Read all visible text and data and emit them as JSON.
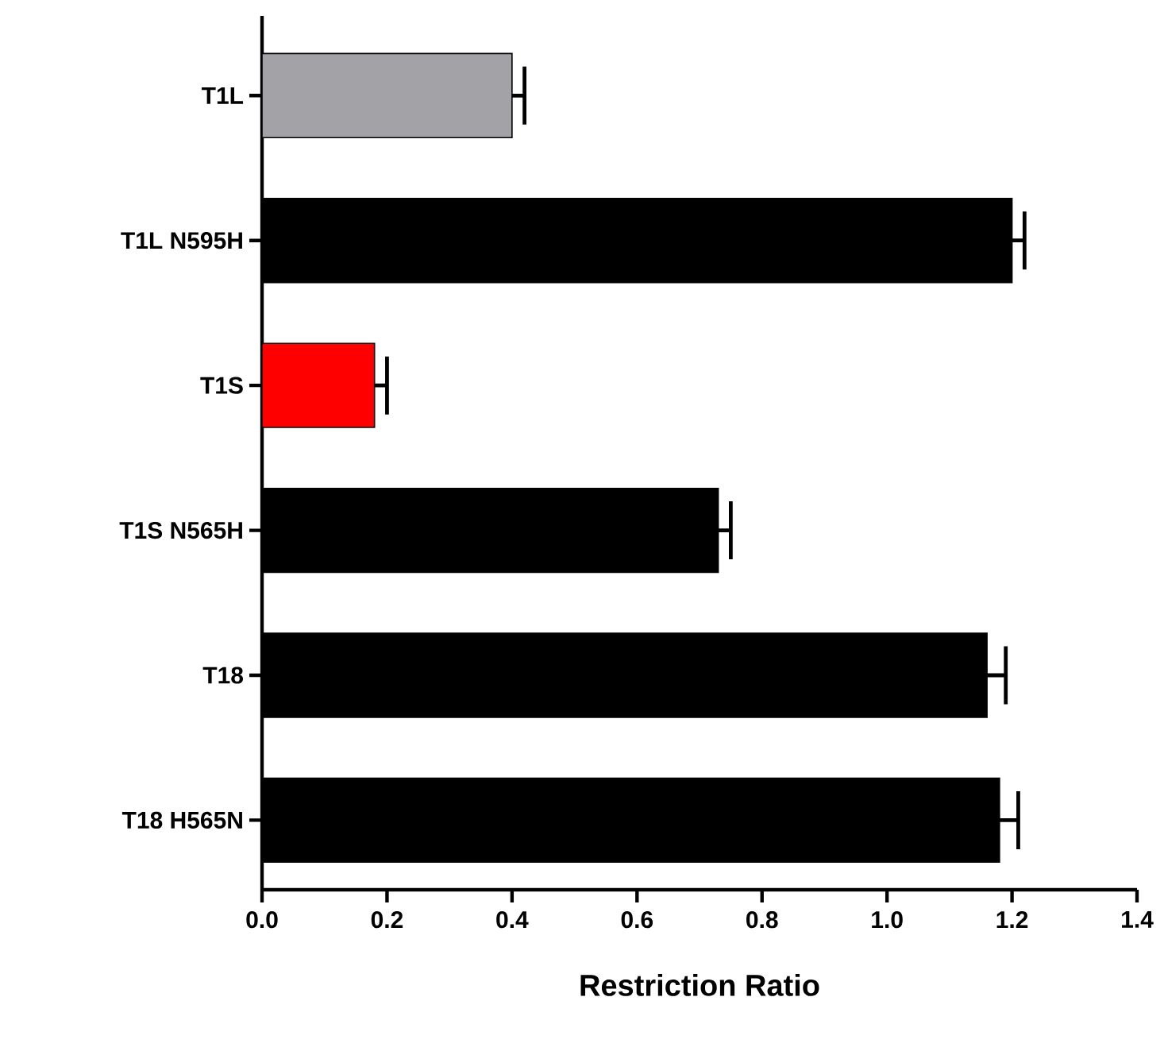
{
  "chart_data": {
    "type": "bar",
    "orientation": "horizontal",
    "xlabel": "Restriction Ratio",
    "categories": [
      "T1L",
      "T1L N595H",
      "T1S",
      "T1S N565H",
      "T18",
      "T18 H565N"
    ],
    "values": [
      0.4,
      1.2,
      0.18,
      0.73,
      1.16,
      1.18
    ],
    "errors": [
      [
        0.4,
        0.42
      ],
      [
        1.2,
        1.22
      ],
      [
        0.18,
        0.2
      ],
      [
        0.73,
        0.75
      ],
      [
        1.16,
        1.19
      ],
      [
        1.18,
        1.21
      ]
    ],
    "colors": [
      "#a3a2a6",
      "#000000",
      "#ff0000",
      "#000000",
      "#000000",
      "#000000"
    ],
    "xlim": [
      0,
      1.4
    ],
    "xticks": [
      {
        "value": 0,
        "label": "0.0"
      },
      0.2,
      0.4,
      0.6,
      0.8,
      {
        "value": 1.0,
        "label": "1.0"
      },
      1.2,
      1.4
    ],
    "grid": false
  }
}
